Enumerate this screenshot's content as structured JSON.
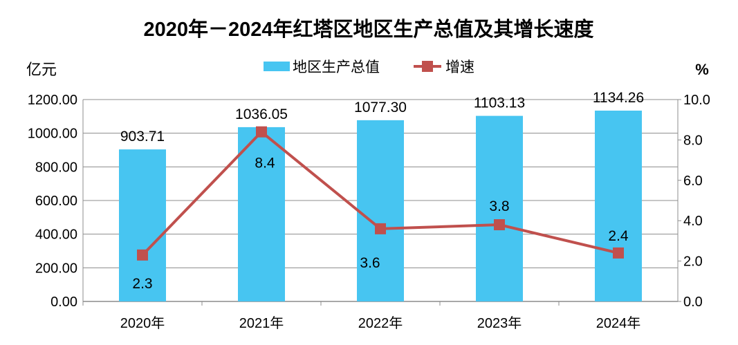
{
  "chart_data": {
    "type": "bar+line",
    "title": "2020年－2024年红塔区地区生产总值及其增长速度",
    "categories": [
      "2020年",
      "2021年",
      "2022年",
      "2023年",
      "2024年"
    ],
    "series": [
      {
        "name": "地区生产总值",
        "type": "bar",
        "axis": "left",
        "values": [
          903.71,
          1036.05,
          1077.3,
          1103.13,
          1134.26
        ],
        "labels": [
          "903.71",
          "1036.05",
          "1077.30",
          "1103.13",
          "1134.26"
        ],
        "color": "#47C5F1"
      },
      {
        "name": "增速",
        "type": "line",
        "axis": "right",
        "values": [
          2.3,
          8.4,
          3.6,
          3.8,
          2.4
        ],
        "labels": [
          "2.3",
          "8.4",
          "3.6",
          "3.8",
          "2.4"
        ],
        "color": "#C0504D"
      }
    ],
    "ylabel_left": "亿元",
    "ylabel_right": "%",
    "ylim_left": [
      0,
      1200
    ],
    "ylim_right": [
      0,
      10
    ],
    "yticks_left": [
      "0.00",
      "200.00",
      "400.00",
      "600.00",
      "800.00",
      "1000.00",
      "1200.00"
    ],
    "yticks_right": [
      "0.0",
      "2.0",
      "4.0",
      "6.0",
      "8.0",
      "10.0"
    ],
    "grid": true,
    "legend": "top"
  }
}
